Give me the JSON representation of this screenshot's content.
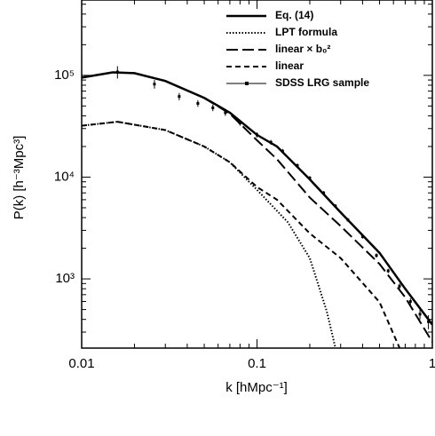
{
  "chart_data": {
    "type": "line",
    "xlabel": "k [hMpc⁻¹]",
    "ylabel": "P(k) [h⁻³Mpc³]",
    "xscale": "log",
    "yscale": "log",
    "xlim": [
      0.01,
      1
    ],
    "ylim": [
      209,
      550000
    ],
    "xticks": [
      0.01,
      0.1,
      1
    ],
    "yticks": [
      {
        "value": 1000,
        "label": "10³"
      },
      {
        "value": 10000,
        "label": "10⁴"
      },
      {
        "value": 100000,
        "label": "10⁵"
      }
    ],
    "legend": "upper right",
    "series": [
      {
        "name": "Eq. (14)",
        "color": "#000000",
        "style": "solid",
        "x": [
          0.01,
          0.015,
          0.02,
          0.03,
          0.05,
          0.07,
          0.1,
          0.13,
          0.2,
          0.3,
          0.5,
          0.7,
          1
        ],
        "values": [
          95000,
          107000,
          105000,
          88000,
          60000,
          43000,
          26000,
          20000,
          9500,
          4500,
          1800,
          800,
          355
        ]
      },
      {
        "name": "LPT formula",
        "color": "#000000",
        "style": "dotted",
        "x": [
          0.01,
          0.016,
          0.03,
          0.05,
          0.07,
          0.1,
          0.15,
          0.2,
          0.25,
          0.28
        ],
        "values": [
          32000,
          35000,
          29000,
          20000,
          14000,
          7500,
          3600,
          1600,
          480,
          210
        ]
      },
      {
        "name": "linear × b₀²",
        "color": "#000000",
        "style": "longdash",
        "x": [
          0.01,
          0.015,
          0.02,
          0.03,
          0.05,
          0.07,
          0.1,
          0.13,
          0.2,
          0.3,
          0.5,
          0.7,
          1
        ],
        "values": [
          95000,
          107000,
          105000,
          88000,
          60000,
          42000,
          23000,
          15000,
          6300,
          3300,
          1400,
          660,
          240
        ]
      },
      {
        "name": "linear",
        "color": "#000000",
        "style": "dashed",
        "x": [
          0.01,
          0.016,
          0.03,
          0.05,
          0.07,
          0.1,
          0.13,
          0.2,
          0.3,
          0.5,
          0.65
        ],
        "values": [
          32000,
          35000,
          29000,
          20000,
          14000,
          8000,
          6000,
          2800,
          1600,
          590,
          210
        ]
      },
      {
        "name": "SDSS LRG sample",
        "color": "#000000",
        "style": "points",
        "x": [
          0.016,
          0.026,
          0.036,
          0.046,
          0.056,
          0.066,
          0.08,
          0.1,
          0.12,
          0.14,
          0.17,
          0.2,
          0.24,
          0.28,
          0.33,
          0.4,
          0.48,
          0.56,
          0.65,
          0.75,
          0.85,
          0.95
        ],
        "values": [
          108000,
          82000,
          62000,
          53000,
          48000,
          43000,
          34000,
          26000,
          22000,
          18000,
          13000,
          9800,
          7000,
          5200,
          3800,
          2600,
          1700,
          1200,
          850,
          600,
          450,
          380
        ],
        "errors": [
          15000,
          8000,
          5000,
          4000,
          3500,
          3000,
          2000,
          1500,
          1200,
          900,
          600,
          450,
          300,
          220,
          160,
          110,
          80,
          60,
          50,
          45,
          50,
          60
        ]
      }
    ]
  }
}
